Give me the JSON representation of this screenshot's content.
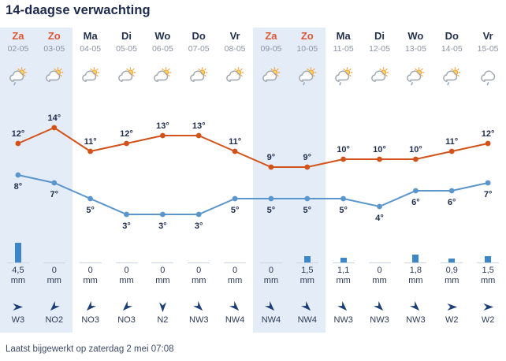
{
  "title": "14-daagse verwachting",
  "footer": {
    "last_updated": "Laatst bijgewerkt op zaterdag 2 mei 07:08"
  },
  "units": {
    "precip": "mm",
    "degree": "°"
  },
  "colors": {
    "title_navy": "#1b2a4e",
    "weekday_navy": "#24324f",
    "weekend_accent": "#dd5533",
    "date_muted": "#8b94a5",
    "weekend_bg": "#e4edf7",
    "high_line": "#d2521a",
    "low_line": "#5a95cc",
    "precip_bar": "#3d87c8",
    "baseline_gray": "#ccd6e2",
    "wind_arrow": "#1d3f76",
    "label_navy": "#1f2d4d"
  },
  "days": [
    {
      "name": "Za",
      "date": "02-05",
      "weekend": true,
      "icon": "sun-cloud-rain",
      "high": 12,
      "low": 8,
      "precip_label": "4,5",
      "precip_mm": 4.5,
      "wind": {
        "label": "W3",
        "rotation": 0
      }
    },
    {
      "name": "Zo",
      "date": "03-05",
      "weekend": true,
      "icon": "sun-cloud",
      "high": 14,
      "low": 7,
      "precip_label": "0",
      "precip_mm": 0,
      "wind": {
        "label": "NO2",
        "rotation": 135
      }
    },
    {
      "name": "Ma",
      "date": "04-05",
      "weekend": false,
      "icon": "sun-cloud",
      "high": 11,
      "low": 5,
      "precip_label": "0",
      "precip_mm": 0,
      "wind": {
        "label": "NO3",
        "rotation": 135
      }
    },
    {
      "name": "Di",
      "date": "05-05",
      "weekend": false,
      "icon": "sun-cloud",
      "high": 12,
      "low": 3,
      "precip_label": "0",
      "precip_mm": 0,
      "wind": {
        "label": "NO3",
        "rotation": 135
      }
    },
    {
      "name": "Wo",
      "date": "06-05",
      "weekend": false,
      "icon": "sun-cloud",
      "high": 13,
      "low": 3,
      "precip_label": "0",
      "precip_mm": 0,
      "wind": {
        "label": "N2",
        "rotation": 90
      }
    },
    {
      "name": "Do",
      "date": "07-05",
      "weekend": false,
      "icon": "sun-cloud",
      "high": 13,
      "low": 3,
      "precip_label": "0",
      "precip_mm": 0,
      "wind": {
        "label": "NW3",
        "rotation": 45
      }
    },
    {
      "name": "Vr",
      "date": "08-05",
      "weekend": false,
      "icon": "sun-cloud",
      "high": 11,
      "low": 5,
      "precip_label": "0",
      "precip_mm": 0,
      "wind": {
        "label": "NW4",
        "rotation": 45
      }
    },
    {
      "name": "Za",
      "date": "09-05",
      "weekend": true,
      "icon": "sun-cloud",
      "high": 9,
      "low": 5,
      "precip_label": "0",
      "precip_mm": 0,
      "wind": {
        "label": "NW4",
        "rotation": 45
      }
    },
    {
      "name": "Zo",
      "date": "10-05",
      "weekend": true,
      "icon": "sun-cloud-rain",
      "high": 9,
      "low": 5,
      "precip_label": "1,5",
      "precip_mm": 1.5,
      "wind": {
        "label": "NW4",
        "rotation": 45
      }
    },
    {
      "name": "Ma",
      "date": "11-05",
      "weekend": false,
      "icon": "sun-cloud-rain",
      "high": 10,
      "low": 5,
      "precip_label": "1,1",
      "precip_mm": 1.1,
      "wind": {
        "label": "NW3",
        "rotation": 45
      }
    },
    {
      "name": "Di",
      "date": "12-05",
      "weekend": false,
      "icon": "sun-cloud",
      "high": 10,
      "low": 4,
      "precip_label": "0",
      "precip_mm": 0,
      "wind": {
        "label": "NW3",
        "rotation": 45
      }
    },
    {
      "name": "Wo",
      "date": "13-05",
      "weekend": false,
      "icon": "sun-cloud-rain",
      "high": 10,
      "low": 6,
      "precip_label": "1,8",
      "precip_mm": 1.8,
      "wind": {
        "label": "NW3",
        "rotation": 45
      }
    },
    {
      "name": "Do",
      "date": "14-05",
      "weekend": false,
      "icon": "sun-cloud-rain",
      "high": 11,
      "low": 6,
      "precip_label": "0,9",
      "precip_mm": 0.9,
      "wind": {
        "label": "W2",
        "rotation": 0
      }
    },
    {
      "name": "Vr",
      "date": "15-05",
      "weekend": false,
      "icon": "cloud-rain",
      "high": 12,
      "low": 7,
      "precip_label": "1,5",
      "precip_mm": 1.5,
      "wind": {
        "label": "W2",
        "rotation": 0
      }
    }
  ],
  "chart_data": {
    "type": "line",
    "x": [
      "02-05",
      "03-05",
      "04-05",
      "05-05",
      "06-05",
      "07-05",
      "08-05",
      "09-05",
      "10-05",
      "11-05",
      "12-05",
      "13-05",
      "14-05",
      "15-05"
    ],
    "series": [
      {
        "name": "maximum temperature",
        "color": "#d2521a",
        "unit": "°C",
        "values": [
          12,
          14,
          11,
          12,
          13,
          13,
          11,
          9,
          9,
          10,
          10,
          10,
          11,
          12
        ]
      },
      {
        "name": "minimum temperature",
        "color": "#5a95cc",
        "unit": "°C",
        "values": [
          8,
          7,
          5,
          3,
          3,
          3,
          5,
          5,
          5,
          5,
          4,
          6,
          6,
          7
        ]
      }
    ],
    "bars": {
      "name": "precipitation",
      "unit": "mm",
      "color": "#3d87c8",
      "values": [
        4.5,
        0,
        0,
        0,
        0,
        0,
        0,
        0,
        1.5,
        1.1,
        0,
        1.8,
        0.9,
        1.5
      ]
    },
    "wind": [
      "W3",
      "NO2",
      "NO3",
      "NO3",
      "N2",
      "NW3",
      "NW4",
      "NW4",
      "NW4",
      "NW3",
      "NW3",
      "NW3",
      "W2",
      "W2"
    ],
    "ylim": [
      0,
      16
    ],
    "grid": false,
    "legend": "none",
    "data_labels": true
  }
}
